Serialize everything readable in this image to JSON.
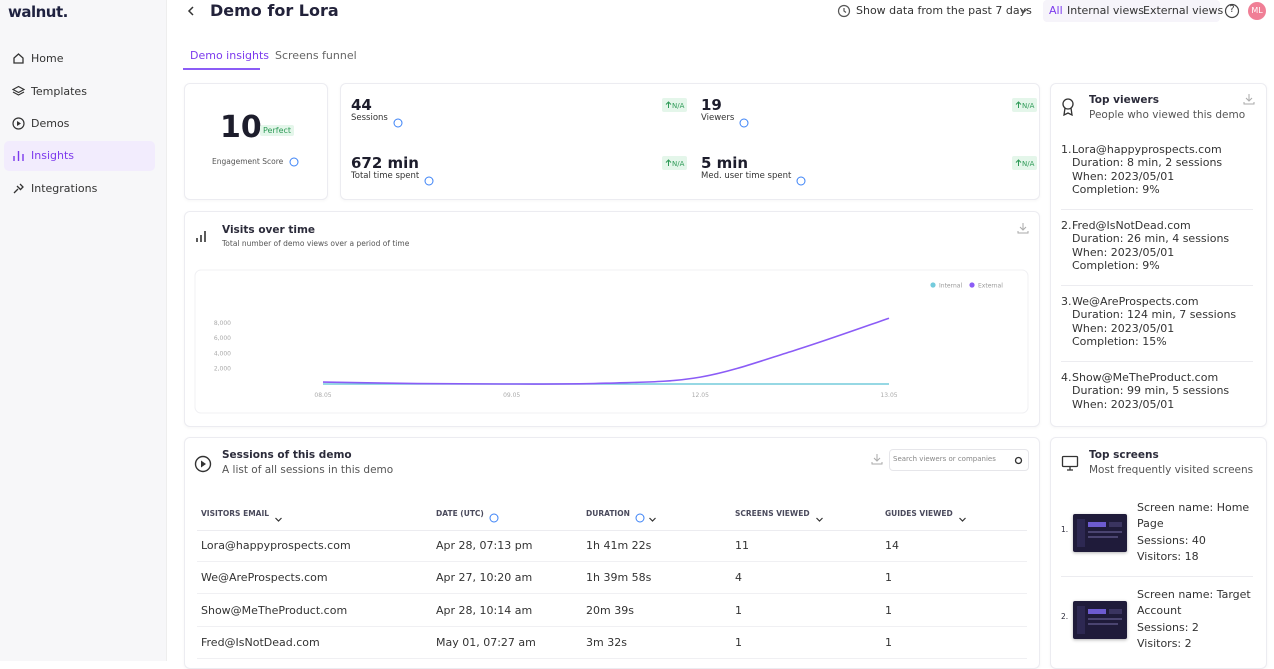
{
  "sidebar": {
    "logo": "walnut.",
    "nav": [
      "Home",
      "Templates",
      "Demos",
      "Insights",
      "Integrations"
    ],
    "active": 3
  },
  "header": {
    "title": "Demo for Lora",
    "date_filter": "Show data from the past 7 days",
    "view_filters": [
      "All",
      "Internal views",
      "External views"
    ],
    "active_filter": 0,
    "help": "?",
    "avatar": "ML"
  },
  "tabs": [
    "Demo insights",
    "Screens funnel"
  ],
  "engagement": {
    "score": 10,
    "badge": "Perfect",
    "label": "Engagement Score"
  },
  "stats": [
    {
      "value": "44",
      "label": "Sessions",
      "change": "N/A"
    },
    {
      "value": "19",
      "label": "Viewers",
      "change": "N/A"
    },
    {
      "value": "672 min",
      "label": "Total time spent",
      "change": "N/A"
    },
    {
      "value": "5 min",
      "label": "Med. user time spent",
      "change": "N/A"
    }
  ],
  "visits_chart": {
    "type": "line",
    "title": "Visits over time",
    "subtitle": "Total number of demo views over a period of time",
    "categories": [
      "08.05",
      null,
      "09.05",
      null,
      "12.05",
      null,
      "13.05"
    ],
    "series": [
      {
        "name": "Internal",
        "color": "#74cbdc",
        "values": [
          0,
          0,
          0,
          0,
          0,
          0,
          0
        ]
      },
      {
        "name": "External",
        "color": "#8b5cf6",
        "values": [
          250,
          60,
          0,
          100,
          900,
          4400,
          8600
        ]
      }
    ],
    "ylim": [
      0,
      10000
    ],
    "yticks": [
      {
        "value": 2000,
        "label": "2,000"
      },
      {
        "value": 4000,
        "label": "4,000"
      },
      {
        "value": 6000,
        "label": "6,000"
      },
      {
        "value": 8000,
        "label": "8,000"
      }
    ]
  },
  "sessions": {
    "title": "Sessions of this demo",
    "subtitle": "A list of all sessions in this demo",
    "search_placeholder": "Search viewers or companies",
    "columns": [
      "VISITORS EMAIL",
      "DATE (UTC)",
      "DURATION",
      "SCREENS VIEWED",
      "GUIDES VIEWED"
    ],
    "rows": [
      [
        "Lora@happyprospects.com",
        "Apr 28, 07:13 pm",
        "1h 41m 22s",
        11,
        14
      ],
      [
        "We@AreProspects.com",
        "Apr 27, 10:20 am",
        "1h 39m 58s",
        4,
        1
      ],
      [
        "Show@MeTheProduct.com",
        "Apr 28, 10:14 am",
        "20m 39s",
        1,
        1
      ],
      [
        "Fred@IsNotDead.com",
        "May 01, 07:27 am",
        "3m 32s",
        1,
        1
      ]
    ]
  },
  "top_viewers": {
    "title": "Top viewers",
    "subtitle": "People who viewed this demo",
    "items": [
      {
        "rank": "1.",
        "email": "Lora@happyprospects.com",
        "lines": [
          "Duration: 8 min, 2 sessions",
          "When: 2023/05/01",
          "Completion: 9%"
        ]
      },
      {
        "rank": "2.",
        "email": "Fred@IsNotDead.com",
        "lines": [
          "Duration: 26 min, 4 sessions",
          "When: 2023/05/01",
          "Completion: 9%"
        ]
      },
      {
        "rank": "3.",
        "email": "We@AreProspects.com",
        "lines": [
          "Duration: 124 min, 7 sessions",
          "When: 2023/05/01",
          "Completion: 15%"
        ]
      },
      {
        "rank": "4.",
        "email": "Show@MeTheProduct.com",
        "lines": [
          "Duration: 99 min, 5 sessions",
          "When: 2023/05/01"
        ]
      }
    ]
  },
  "top_screens": {
    "title": "Top screens",
    "subtitle": "Most frequently visited screens",
    "items": [
      {
        "rank": "1.",
        "lines": [
          "Screen name: Home Page",
          "Sessions: 40",
          "Visitors: 18"
        ]
      },
      {
        "rank": "2.",
        "lines": [
          "Screen name: Target Account",
          "Sessions: 2",
          "Visitors: 2"
        ]
      }
    ]
  }
}
